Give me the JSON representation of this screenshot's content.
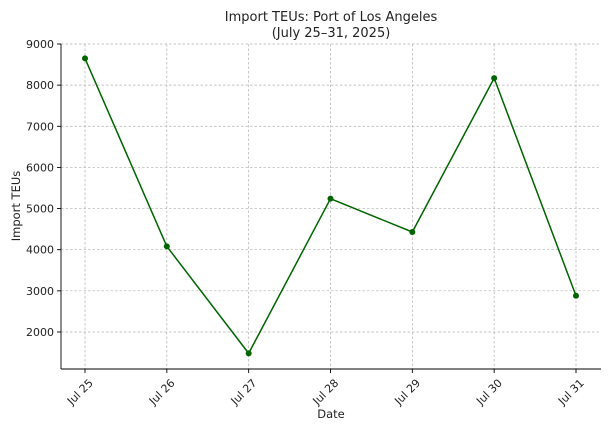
{
  "chart_data": {
    "type": "line",
    "title": "Import TEUs: Port of Los Angeles",
    "subtitle": "(July 25–31, 2025)",
    "xlabel": "Date",
    "ylabel": "Import TEUs",
    "categories": [
      "Jul 25",
      "Jul 26",
      "Jul 27",
      "Jul 28",
      "Jul 29",
      "Jul 30",
      "Jul 31"
    ],
    "series": [
      {
        "values": [
          8650,
          4080,
          1480,
          5240,
          4430,
          8170,
          2880
        ],
        "color": "#006400",
        "marker": "circle"
      }
    ],
    "ylim": [
      1100,
      9000
    ],
    "yticks": [
      2000,
      3000,
      4000,
      5000,
      6000,
      7000,
      8000,
      9000
    ],
    "grid": true,
    "legend": "none"
  }
}
